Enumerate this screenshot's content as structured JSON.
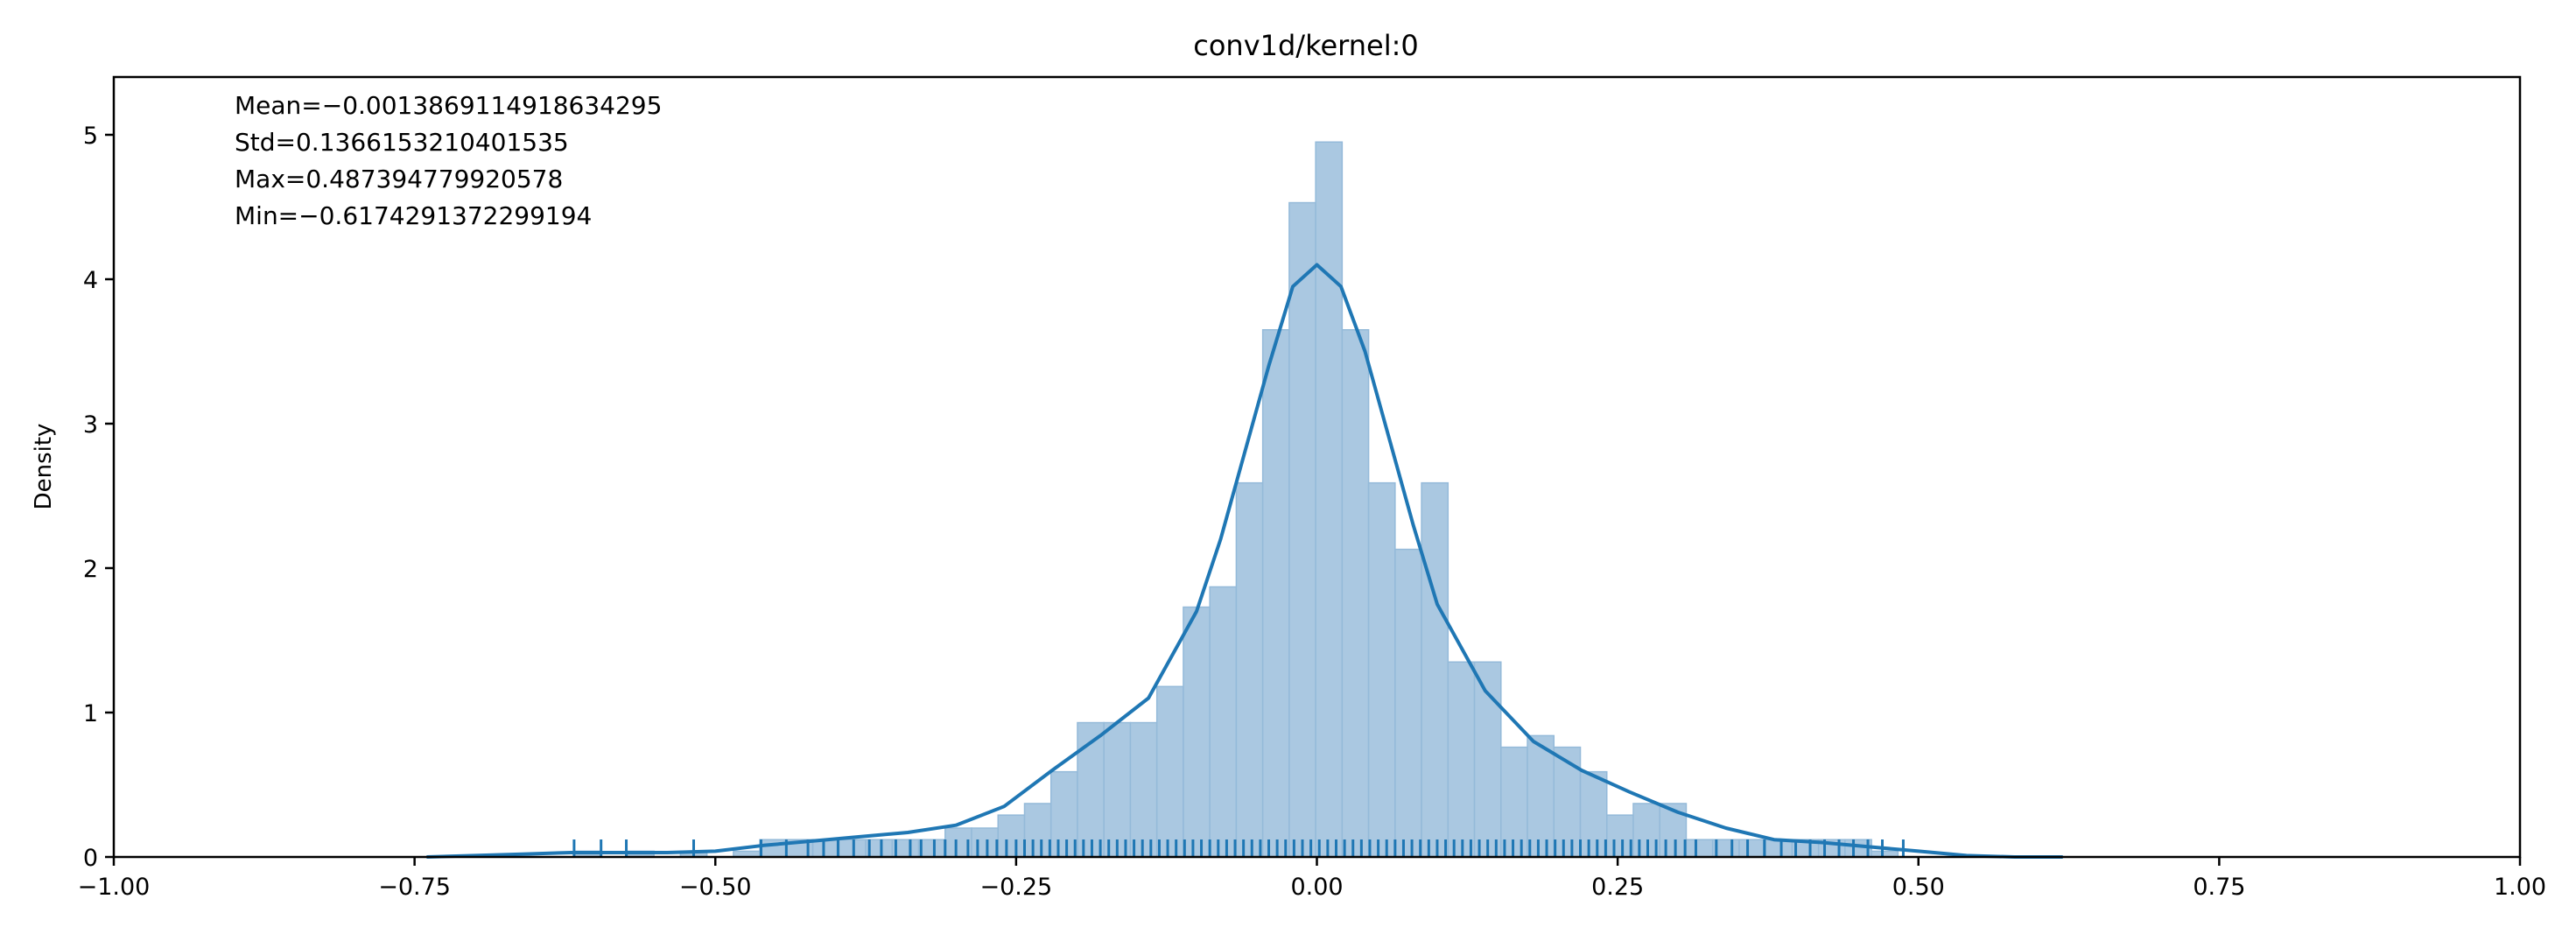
{
  "chart_data": {
    "type": "bar",
    "title": "conv1d/kernel:0",
    "xlabel": "",
    "ylabel": "Density",
    "xlim": [
      -1.0,
      1.0
    ],
    "ylim": [
      0,
      5.4
    ],
    "x_ticks": [
      -1.0,
      -0.75,
      -0.5,
      -0.25,
      0.0,
      0.25,
      0.5,
      0.75,
      1.0
    ],
    "x_tick_labels": [
      "−1.00",
      "−0.75",
      "−0.50",
      "−0.25",
      "0.00",
      "0.25",
      "0.50",
      "0.75",
      "1.00"
    ],
    "y_ticks": [
      0,
      1,
      2,
      3,
      4,
      5
    ],
    "y_tick_labels": [
      "0",
      "1",
      "2",
      "3",
      "4",
      "5"
    ],
    "grid": false,
    "legend": "none",
    "stats": [
      "Mean=−0.0013869114918634295",
      "Std=0.1366153210401535",
      "Max=0.487394779920578",
      "Min=−0.6174291372299194"
    ],
    "histogram": {
      "bin_width": 0.022,
      "bins": [
        {
          "x0": -0.617,
          "density": 0.04
        },
        {
          "x0": -0.595,
          "density": 0.0
        },
        {
          "x0": -0.573,
          "density": 0.04
        },
        {
          "x0": -0.551,
          "density": 0.0
        },
        {
          "x0": -0.529,
          "density": 0.04
        },
        {
          "x0": -0.507,
          "density": 0.0
        },
        {
          "x0": -0.485,
          "density": 0.04
        },
        {
          "x0": -0.463,
          "density": 0.12
        },
        {
          "x0": -0.441,
          "density": 0.12
        },
        {
          "x0": -0.419,
          "density": 0.12
        },
        {
          "x0": -0.397,
          "density": 0.12
        },
        {
          "x0": -0.375,
          "density": 0.12
        },
        {
          "x0": -0.353,
          "density": 0.12
        },
        {
          "x0": -0.331,
          "density": 0.12
        },
        {
          "x0": -0.309,
          "density": 0.2
        },
        {
          "x0": -0.287,
          "density": 0.2
        },
        {
          "x0": -0.265,
          "density": 0.29
        },
        {
          "x0": -0.243,
          "density": 0.37
        },
        {
          "x0": -0.221,
          "density": 0.59
        },
        {
          "x0": -0.199,
          "density": 0.93
        },
        {
          "x0": -0.177,
          "density": 0.93
        },
        {
          "x0": -0.155,
          "density": 0.93
        },
        {
          "x0": -0.133,
          "density": 1.18
        },
        {
          "x0": -0.111,
          "density": 1.73
        },
        {
          "x0": -0.089,
          "density": 1.87
        },
        {
          "x0": -0.067,
          "density": 2.59
        },
        {
          "x0": -0.045,
          "density": 3.65
        },
        {
          "x0": -0.023,
          "density": 4.53
        },
        {
          "x0": -0.001,
          "density": 4.95
        },
        {
          "x0": 0.021,
          "density": 3.65
        },
        {
          "x0": 0.043,
          "density": 2.59
        },
        {
          "x0": 0.065,
          "density": 2.13
        },
        {
          "x0": 0.087,
          "density": 2.59
        },
        {
          "x0": 0.109,
          "density": 1.35
        },
        {
          "x0": 0.131,
          "density": 1.35
        },
        {
          "x0": 0.153,
          "density": 0.76
        },
        {
          "x0": 0.175,
          "density": 0.84
        },
        {
          "x0": 0.197,
          "density": 0.76
        },
        {
          "x0": 0.219,
          "density": 0.59
        },
        {
          "x0": 0.241,
          "density": 0.29
        },
        {
          "x0": 0.263,
          "density": 0.37
        },
        {
          "x0": 0.285,
          "density": 0.37
        },
        {
          "x0": 0.307,
          "density": 0.12
        },
        {
          "x0": 0.329,
          "density": 0.12
        },
        {
          "x0": 0.351,
          "density": 0.12
        },
        {
          "x0": 0.373,
          "density": 0.12
        },
        {
          "x0": 0.395,
          "density": 0.12
        },
        {
          "x0": 0.417,
          "density": 0.12
        },
        {
          "x0": 0.439,
          "density": 0.12
        },
        {
          "x0": 0.461,
          "density": 0.04
        }
      ]
    },
    "kde": {
      "x": [
        -0.74,
        -0.7,
        -0.66,
        -0.62,
        -0.58,
        -0.54,
        -0.5,
        -0.46,
        -0.42,
        -0.38,
        -0.34,
        -0.3,
        -0.26,
        -0.22,
        -0.18,
        -0.14,
        -0.1,
        -0.08,
        -0.06,
        -0.04,
        -0.02,
        0.0,
        0.02,
        0.04,
        0.06,
        0.08,
        0.1,
        0.14,
        0.18,
        0.22,
        0.26,
        0.3,
        0.34,
        0.38,
        0.42,
        0.46,
        0.5,
        0.54,
        0.58,
        0.62
      ],
      "y": [
        0.0,
        0.01,
        0.02,
        0.03,
        0.03,
        0.03,
        0.04,
        0.08,
        0.11,
        0.14,
        0.17,
        0.22,
        0.35,
        0.6,
        0.84,
        1.1,
        1.7,
        2.2,
        2.8,
        3.4,
        3.95,
        4.1,
        3.95,
        3.5,
        2.9,
        2.3,
        1.75,
        1.15,
        0.8,
        0.6,
        0.45,
        0.31,
        0.2,
        0.12,
        0.1,
        0.07,
        0.04,
        0.01,
        0.0,
        0.0
      ]
    },
    "rug_x": [
      -0.6174,
      -0.595,
      -0.574,
      -0.518,
      -0.462,
      -0.441,
      -0.423,
      -0.41,
      -0.398,
      -0.385,
      -0.372,
      -0.362,
      -0.35,
      -0.338,
      -0.329,
      -0.318,
      -0.309,
      -0.3,
      -0.29,
      -0.282,
      -0.274,
      -0.266,
      -0.258,
      -0.25,
      -0.243,
      -0.236,
      -0.229,
      -0.222,
      -0.215,
      -0.208,
      -0.201,
      -0.194,
      -0.187,
      -0.18,
      -0.173,
      -0.166,
      -0.159,
      -0.152,
      -0.145,
      -0.138,
      -0.131,
      -0.124,
      -0.117,
      -0.11,
      -0.103,
      -0.096,
      -0.089,
      -0.082,
      -0.075,
      -0.068,
      -0.061,
      -0.054,
      -0.047,
      -0.04,
      -0.033,
      -0.026,
      -0.019,
      -0.012,
      -0.005,
      0.002,
      0.009,
      0.016,
      0.023,
      0.03,
      0.037,
      0.044,
      0.051,
      0.058,
      0.065,
      0.072,
      0.079,
      0.086,
      0.093,
      0.1,
      0.107,
      0.114,
      0.121,
      0.128,
      0.135,
      0.142,
      0.149,
      0.156,
      0.163,
      0.17,
      0.177,
      0.184,
      0.191,
      0.198,
      0.205,
      0.212,
      0.219,
      0.226,
      0.233,
      0.24,
      0.247,
      0.254,
      0.261,
      0.268,
      0.275,
      0.282,
      0.29,
      0.298,
      0.306,
      0.315,
      0.332,
      0.345,
      0.358,
      0.372,
      0.386,
      0.398,
      0.41,
      0.422,
      0.434,
      0.446,
      0.458,
      0.47,
      0.4874
    ],
    "colors": {
      "bar_fill": "#aac8e1",
      "bar_edge": "#94bad9",
      "line": "#1f77b4",
      "rug": "#1f77b4",
      "axes": "#000000"
    }
  }
}
